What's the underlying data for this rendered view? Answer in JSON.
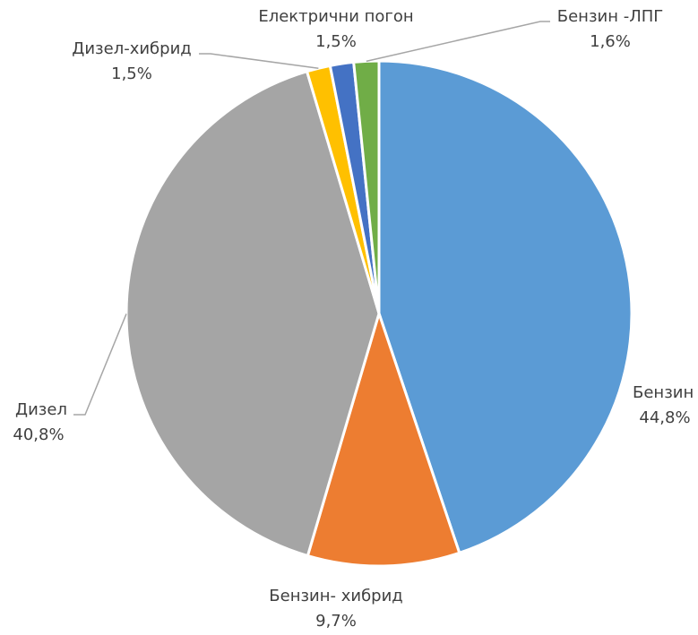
{
  "chart_data": {
    "type": "pie",
    "title": "",
    "slices": [
      {
        "name": "Бензин",
        "label": "44,8%",
        "value": 44.8,
        "color": "#5B9BD5"
      },
      {
        "name": "Бензин- хибрид",
        "label": "9,7%",
        "value": 9.7,
        "color": "#ED7D31"
      },
      {
        "name": "Дизел",
        "label": "40,8%",
        "value": 40.8,
        "color": "#A5A5A5"
      },
      {
        "name": "Дизел-хибрид",
        "label": "1,5%",
        "value": 1.5,
        "color": "#FFC000"
      },
      {
        "name": "Електрични погон",
        "label": "1,5%",
        "value": 1.5,
        "color": "#4472C4"
      },
      {
        "name": "Бензин -ЛПГ",
        "label": "1,6%",
        "value": 1.6,
        "color": "#70AD47"
      }
    ]
  }
}
